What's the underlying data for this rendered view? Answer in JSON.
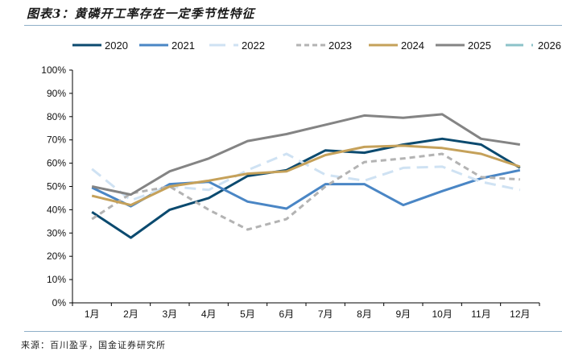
{
  "header": {
    "title": "图表3：黄磷开工率存在一定季节性特征"
  },
  "footer": {
    "source": "来源：百川盈孚，国金证券研究所"
  },
  "chart_data": {
    "type": "line",
    "title": "图表3：黄磷开工率存在一定季节性特征",
    "xlabel": "",
    "ylabel": "",
    "categories": [
      "1月",
      "2月",
      "3月",
      "4月",
      "5月",
      "6月",
      "7月",
      "8月",
      "9月",
      "10月",
      "11月",
      "12月"
    ],
    "y_ticks": [
      "0%",
      "10%",
      "20%",
      "30%",
      "40%",
      "50%",
      "60%",
      "70%",
      "80%",
      "90%",
      "100%"
    ],
    "ylim": [
      0,
      100
    ],
    "y_unit": "%",
    "grid": false,
    "legend_position": "top",
    "series": [
      {
        "name": "2020",
        "color": "#0b4a6f",
        "dash": "solid",
        "values": [
          39,
          28,
          40,
          45,
          54.5,
          57,
          65.5,
          64.5,
          68,
          70.5,
          68,
          58
        ]
      },
      {
        "name": "2021",
        "color": "#4a86c5",
        "dash": "solid",
        "values": [
          49.5,
          41.5,
          51,
          52,
          43.5,
          40.5,
          51,
          51,
          42,
          48,
          53.5,
          57
        ]
      },
      {
        "name": "2022",
        "color": "#cfe2f3",
        "dash": "longdash",
        "values": [
          57.5,
          44,
          50,
          48.5,
          57,
          64,
          55,
          52.5,
          58,
          58.5,
          52,
          48.5
        ]
      },
      {
        "name": "2023",
        "color": "#b3b3b3",
        "dash": "dash",
        "values": [
          36,
          47,
          50,
          40,
          31.5,
          36,
          50,
          60.5,
          62,
          64,
          54,
          53
        ]
      },
      {
        "name": "2024",
        "color": "#c5a15a",
        "dash": "solid",
        "values": [
          46,
          42,
          50,
          52.5,
          55.5,
          56.5,
          63.5,
          67,
          67.5,
          66.5,
          64,
          58.5
        ]
      },
      {
        "name": "2025",
        "color": "#848484",
        "dash": "solid",
        "values": [
          50,
          46.5,
          56.5,
          62,
          69.5,
          72.5,
          76.5,
          80.5,
          79.5,
          81,
          70.5,
          68
        ]
      },
      {
        "name": "2026",
        "color": "#8cc3c9",
        "dash": "dashdot",
        "values": []
      }
    ]
  }
}
